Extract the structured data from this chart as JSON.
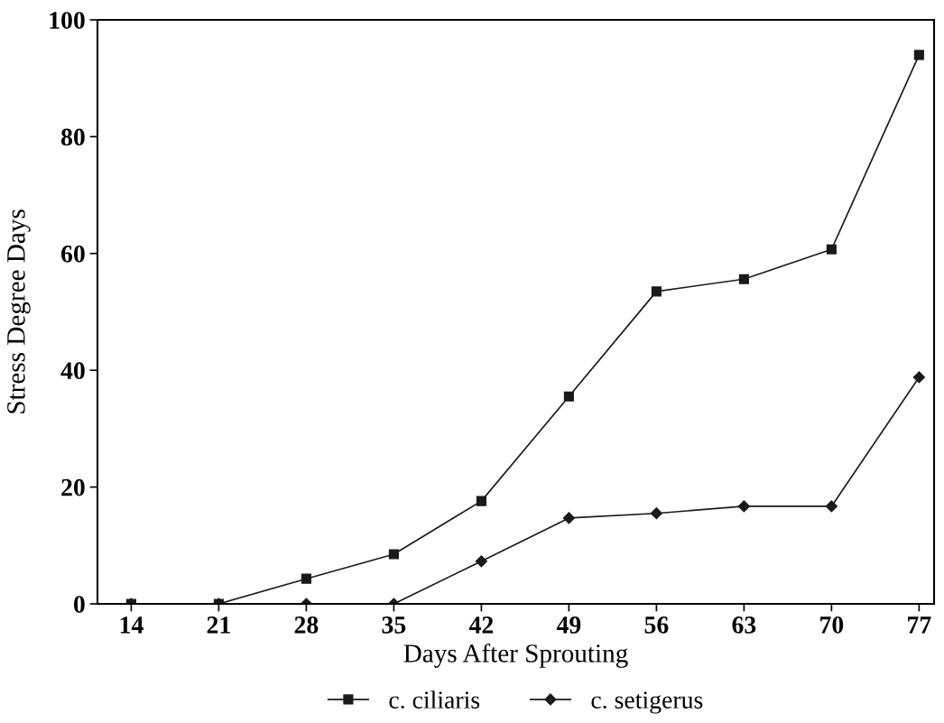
{
  "chart_data": {
    "type": "line",
    "xlabel": "Days After Sprouting",
    "ylabel": "Stress Degree Days",
    "x": [
      14,
      21,
      28,
      35,
      42,
      49,
      56,
      63,
      70,
      77
    ],
    "series": [
      {
        "name": "c. ciliaris",
        "color": "#1a1a1a",
        "marker": "square",
        "values": [
          0,
          0,
          4.3,
          8.5,
          17.6,
          35.5,
          53.5,
          55.6,
          60.7,
          94
        ]
      },
      {
        "name": "c. setigerus",
        "color": "#1a1a1a",
        "marker": "diamond",
        "values": [
          0,
          0,
          0,
          0,
          7.3,
          14.7,
          15.5,
          16.7,
          16.7,
          38.8
        ]
      }
    ],
    "xlim": [
      11.3,
      78.2
    ],
    "xticks": [
      14,
      21,
      28,
      35,
      42,
      49,
      56,
      63,
      70,
      77
    ],
    "ylim": [
      0,
      100
    ],
    "yticks": [
      0,
      20,
      40,
      60,
      80,
      100
    ],
    "grid": false,
    "legend": "bottom",
    "line_style": "solid"
  }
}
